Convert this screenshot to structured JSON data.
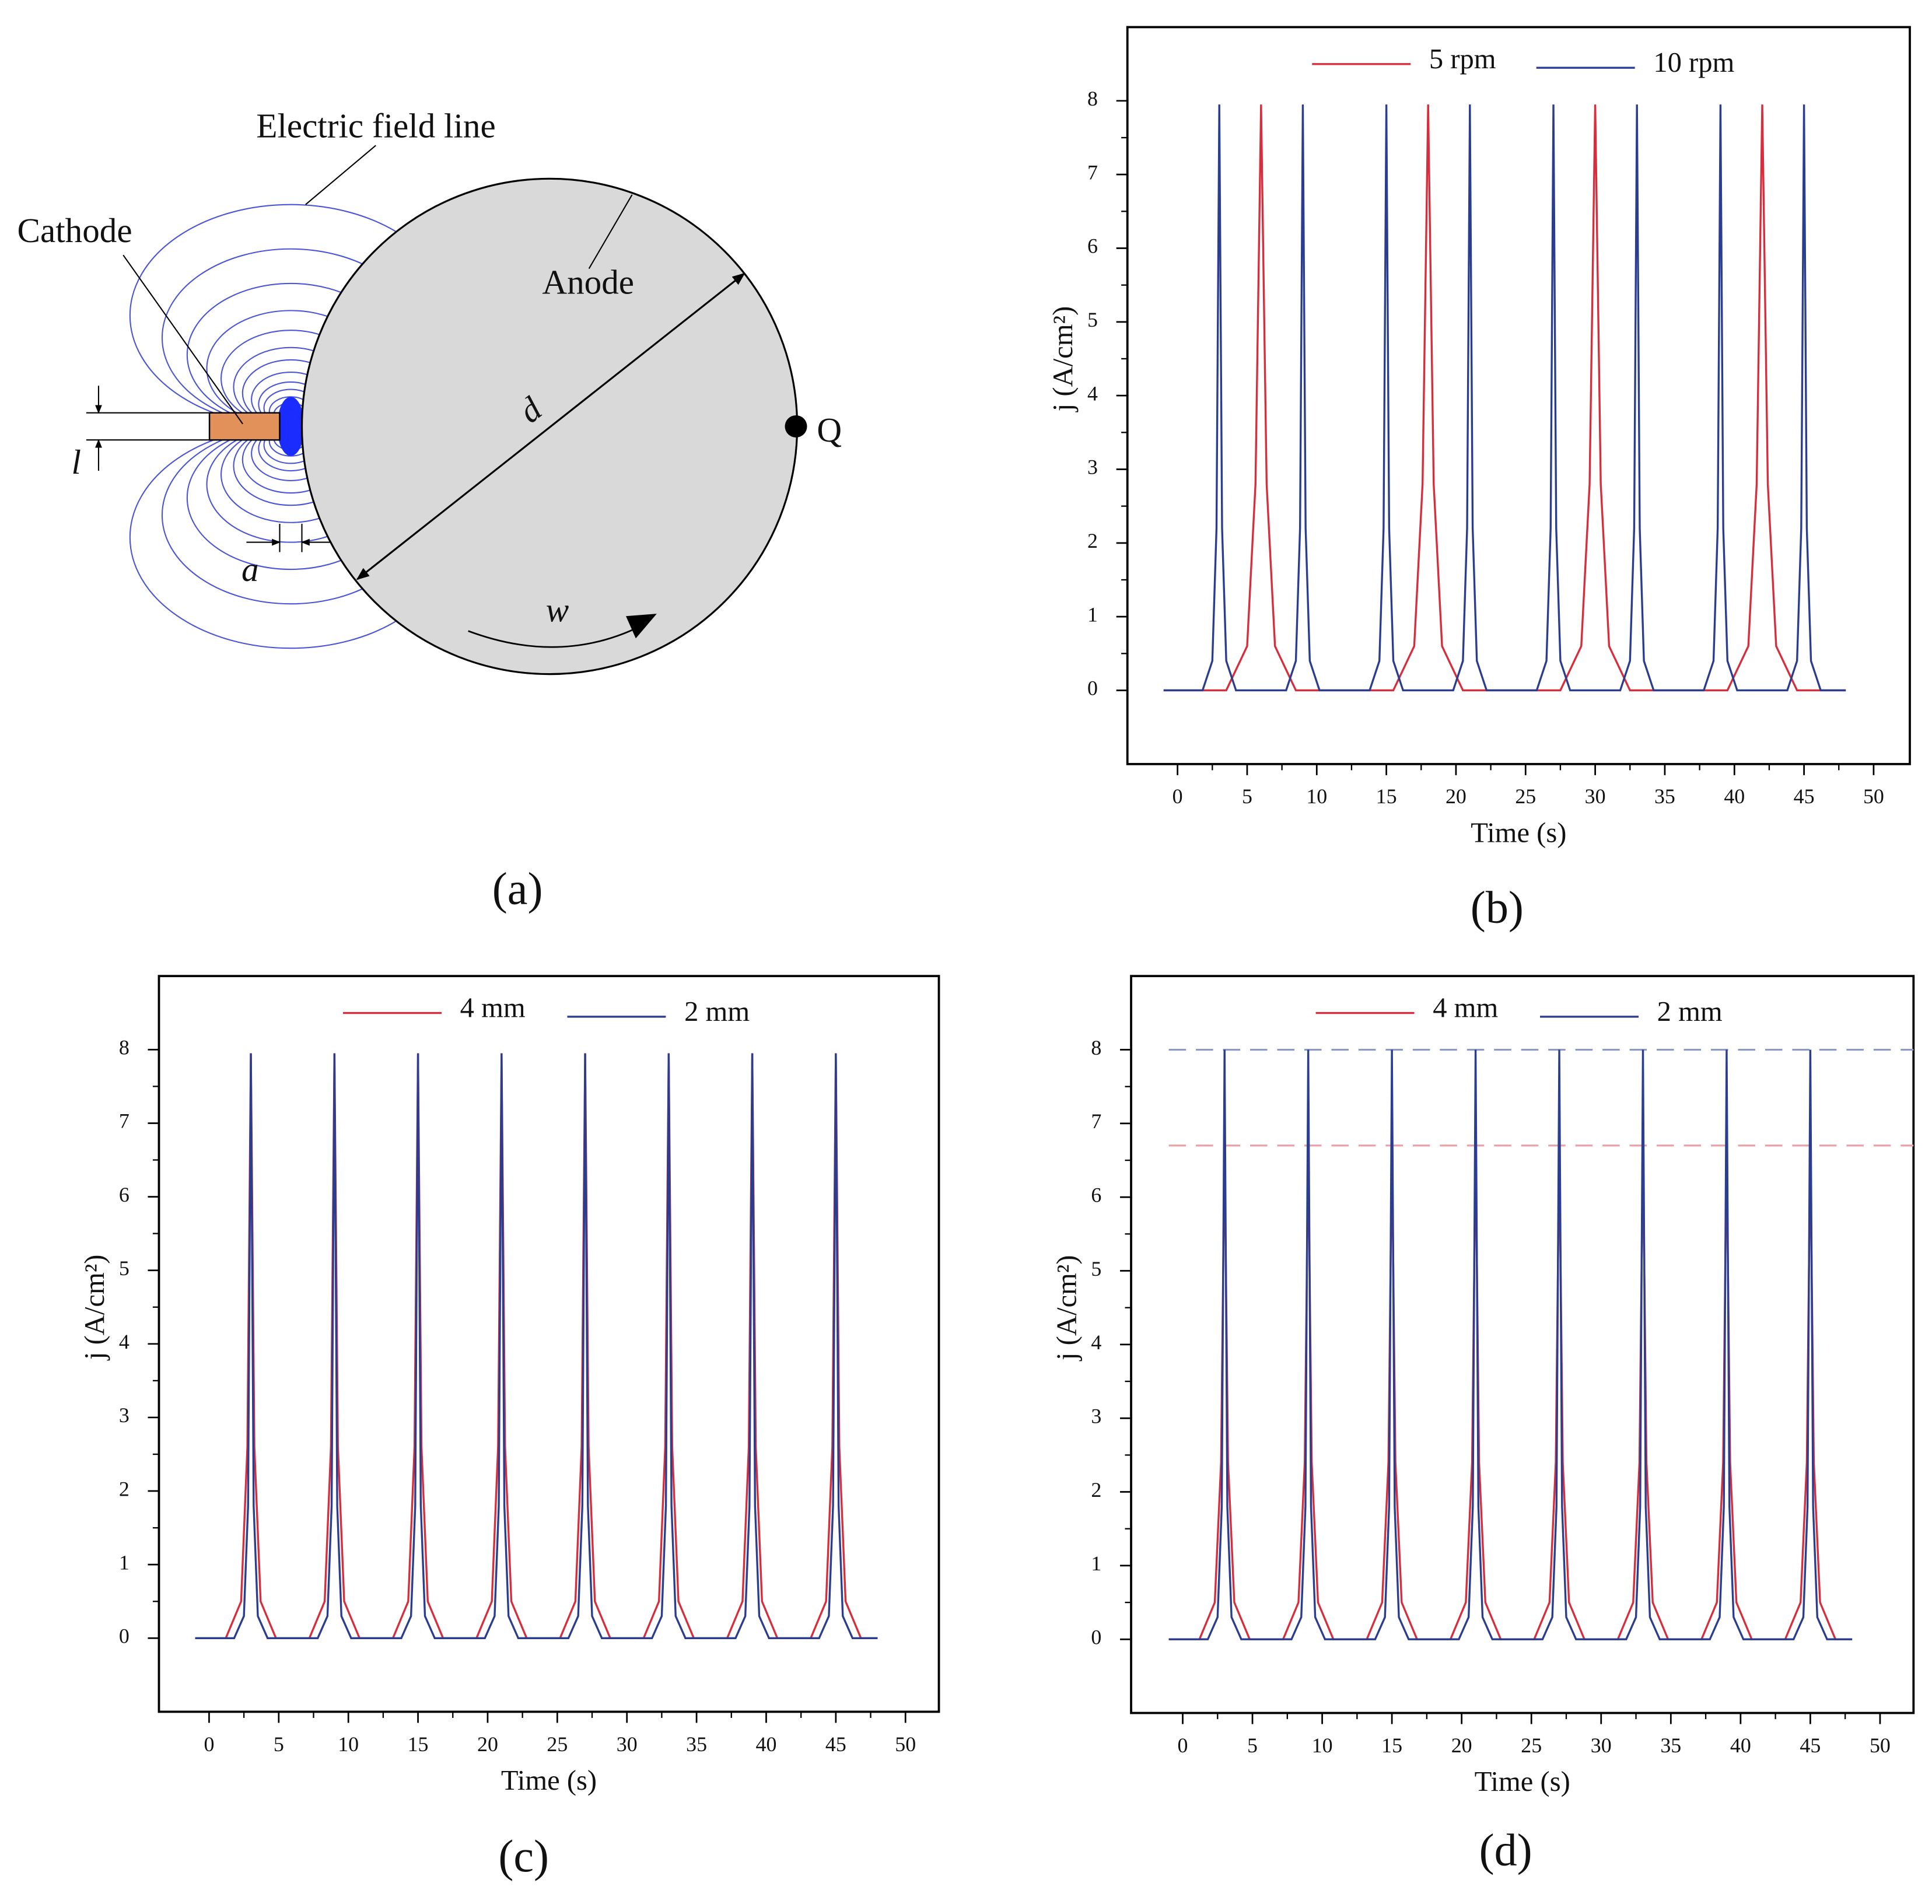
{
  "diagram": {
    "field_line_label": "Electric field line",
    "cathode": "Cathode",
    "anode": "Anode",
    "diameter": "d",
    "point": "Q",
    "thickness": "l",
    "gap": "a",
    "speed": "w",
    "caption": "(a)"
  },
  "chart_data": [
    {
      "type": "line",
      "caption": "(b)",
      "xlabel": "Time (s)",
      "ylabel": "j (A/cm²)",
      "legend": "top",
      "xlim": [
        -3.6,
        52.6
      ],
      "ylim": [
        -1,
        9
      ],
      "xticks": [
        0,
        5,
        10,
        15,
        20,
        25,
        30,
        35,
        40,
        45,
        50
      ],
      "xticks_minor": [
        2.5,
        7.5,
        12.5,
        17.5,
        22.5,
        27.5,
        32.5,
        37.5,
        42.5,
        47.5
      ],
      "yticks": [
        0,
        1,
        2,
        3,
        4,
        5,
        6,
        7,
        8
      ],
      "yticks_minor": [
        0.5,
        1.5,
        2.5,
        3.5,
        4.5,
        5.5,
        6.5,
        7.5
      ],
      "series": [
        {
          "name": "5 rpm",
          "color": "#d62e3c",
          "x": [
            -1,
            3.5,
            5,
            5.6,
            6,
            6.4,
            7,
            8.5,
            15.5,
            17,
            17.6,
            18,
            18.4,
            19,
            20.5,
            27.5,
            29,
            29.6,
            30,
            30.4,
            31,
            32.5,
            39.5,
            41,
            41.6,
            42,
            42.4,
            43,
            44.5,
            48
          ],
          "values": [
            0,
            0,
            0.6,
            2.8,
            7.95,
            2.8,
            0.6,
            0,
            0,
            0.6,
            2.8,
            7.95,
            2.8,
            0.6,
            0,
            0,
            0.6,
            2.8,
            7.95,
            2.8,
            0.6,
            0,
            0,
            0.6,
            2.8,
            7.95,
            2.8,
            0.6,
            0,
            0
          ]
        },
        {
          "name": "10 rpm",
          "color": "#2b3d8f",
          "x": [
            -1,
            1.8,
            2.5,
            2.8,
            3,
            3.2,
            3.5,
            4.2,
            7.8,
            8.5,
            8.8,
            9,
            9.2,
            9.5,
            10.2,
            13.8,
            14.5,
            14.8,
            15,
            15.2,
            15.5,
            16.2,
            19.8,
            20.5,
            20.8,
            21,
            21.2,
            21.5,
            22.2,
            25.8,
            26.5,
            26.8,
            27,
            27.2,
            27.5,
            28.2,
            31.8,
            32.5,
            32.8,
            33,
            33.2,
            33.5,
            34.2,
            37.8,
            38.5,
            38.8,
            39,
            39.2,
            39.5,
            40.2,
            43.8,
            44.5,
            44.8,
            45,
            45.2,
            45.5,
            46.2,
            48
          ],
          "values": [
            0,
            0,
            0.4,
            2.2,
            7.95,
            2.2,
            0.4,
            0,
            0,
            0.4,
            2.2,
            7.95,
            2.2,
            0.4,
            0,
            0,
            0.4,
            2.2,
            7.95,
            2.2,
            0.4,
            0,
            0,
            0.4,
            2.2,
            7.95,
            2.2,
            0.4,
            0,
            0,
            0.4,
            2.2,
            7.95,
            2.2,
            0.4,
            0,
            0,
            0.4,
            2.2,
            7.95,
            2.2,
            0.4,
            0,
            0,
            0.4,
            2.2,
            7.95,
            2.2,
            0.4,
            0,
            0,
            0.4,
            2.2,
            7.95,
            2.2,
            0.4,
            0,
            0
          ]
        }
      ]
    },
    {
      "type": "line",
      "caption": "(c)",
      "xlabel": "Time (s)",
      "ylabel": "j (A/cm²)",
      "legend": "top",
      "xlim": [
        -3.6,
        52.4
      ],
      "ylim": [
        -1,
        9
      ],
      "xticks": [
        0,
        5,
        10,
        15,
        20,
        25,
        30,
        35,
        40,
        45,
        50
      ],
      "xticks_minor": [
        2.5,
        7.5,
        12.5,
        17.5,
        22.5,
        27.5,
        32.5,
        37.5,
        42.5,
        47.5
      ],
      "yticks": [
        0,
        1,
        2,
        3,
        4,
        5,
        6,
        7,
        8
      ],
      "yticks_minor": [
        0.5,
        1.5,
        2.5,
        3.5,
        4.5,
        5.5,
        6.5,
        7.5
      ],
      "series": [
        {
          "name": "4 mm",
          "color": "#d62e3c",
          "x": [
            -1,
            1.2,
            2.3,
            2.75,
            3,
            3.25,
            3.7,
            4.8,
            7.2,
            8.3,
            8.75,
            9,
            9.25,
            9.7,
            10.8,
            13.2,
            14.3,
            14.75,
            15,
            15.25,
            15.7,
            16.8,
            19.2,
            20.3,
            20.75,
            21,
            21.25,
            21.7,
            22.8,
            25.2,
            26.3,
            26.75,
            27,
            27.25,
            27.7,
            28.8,
            31.2,
            32.3,
            32.75,
            33,
            33.25,
            33.7,
            34.8,
            37.2,
            38.3,
            38.75,
            39,
            39.25,
            39.7,
            40.8,
            43.2,
            44.3,
            44.75,
            45,
            45.25,
            45.7,
            46.8,
            48
          ],
          "values": [
            0,
            0,
            0.5,
            2.6,
            7.95,
            2.6,
            0.5,
            0,
            0,
            0.5,
            2.6,
            7.95,
            2.6,
            0.5,
            0,
            0,
            0.5,
            2.6,
            7.95,
            2.6,
            0.5,
            0,
            0,
            0.5,
            2.6,
            7.95,
            2.6,
            0.5,
            0,
            0,
            0.5,
            2.6,
            7.95,
            2.6,
            0.5,
            0,
            0,
            0.5,
            2.6,
            7.95,
            2.6,
            0.5,
            0,
            0,
            0.5,
            2.6,
            7.95,
            2.6,
            0.5,
            0,
            0,
            0.5,
            2.6,
            7.95,
            2.6,
            0.5,
            0,
            0
          ]
        },
        {
          "name": "2 mm",
          "color": "#2b3d8f",
          "x": [
            -1,
            1.8,
            2.5,
            2.8,
            3,
            3.2,
            3.5,
            4.2,
            7.8,
            8.5,
            8.8,
            9,
            9.2,
            9.5,
            10.2,
            13.8,
            14.5,
            14.8,
            15,
            15.2,
            15.5,
            16.2,
            19.8,
            20.5,
            20.8,
            21,
            21.2,
            21.5,
            22.2,
            25.8,
            26.5,
            26.8,
            27,
            27.2,
            27.5,
            28.2,
            31.8,
            32.5,
            32.8,
            33,
            33.2,
            33.5,
            34.2,
            37.8,
            38.5,
            38.8,
            39,
            39.2,
            39.5,
            40.2,
            43.8,
            44.5,
            44.8,
            45,
            45.2,
            45.5,
            46.2,
            48
          ],
          "values": [
            0,
            0,
            0.3,
            1.8,
            7.95,
            1.8,
            0.3,
            0,
            0,
            0.3,
            1.8,
            7.95,
            1.8,
            0.3,
            0,
            0,
            0.3,
            1.8,
            7.95,
            1.8,
            0.3,
            0,
            0,
            0.3,
            1.8,
            7.95,
            1.8,
            0.3,
            0,
            0,
            0.3,
            1.8,
            7.95,
            1.8,
            0.3,
            0,
            0,
            0.3,
            1.8,
            7.95,
            1.8,
            0.3,
            0,
            0,
            0.3,
            1.8,
            7.95,
            1.8,
            0.3,
            0,
            0,
            0.3,
            1.8,
            7.95,
            1.8,
            0.3,
            0,
            0
          ]
        }
      ]
    },
    {
      "type": "line",
      "caption": "(d)",
      "xlabel": "Time (s)",
      "ylabel": "j (A/cm²)",
      "legend": "top",
      "xlim": [
        -3.7,
        52.4
      ],
      "ylim": [
        -1,
        9
      ],
      "xticks": [
        0,
        5,
        10,
        15,
        20,
        25,
        30,
        35,
        40,
        45,
        50
      ],
      "xticks_minor": [
        2.5,
        7.5,
        12.5,
        17.5,
        22.5,
        27.5,
        32.5,
        37.5,
        42.5,
        47.5
      ],
      "yticks": [
        0,
        1,
        2,
        3,
        4,
        5,
        6,
        7,
        8
      ],
      "yticks_minor": [
        0.5,
        1.5,
        2.5,
        3.5,
        4.5,
        5.5,
        6.5,
        7.5
      ],
      "hlines": [
        {
          "value": 8,
          "color": "#8c9ac8"
        },
        {
          "value": 6.7,
          "color": "#eaa3a8"
        }
      ],
      "series": [
        {
          "name": "4 mm",
          "color": "#d62e3c",
          "x": [
            -1,
            1.2,
            2.3,
            2.75,
            3,
            3.25,
            3.7,
            4.8,
            7.2,
            8.3,
            8.75,
            9,
            9.25,
            9.7,
            10.8,
            13.2,
            14.3,
            14.75,
            15,
            15.25,
            15.7,
            16.8,
            19.2,
            20.3,
            20.75,
            21,
            21.25,
            21.7,
            22.8,
            25.2,
            26.3,
            26.75,
            27,
            27.25,
            27.7,
            28.8,
            31.2,
            32.3,
            32.75,
            33,
            33.25,
            33.7,
            34.8,
            37.2,
            38.3,
            38.75,
            39,
            39.25,
            39.7,
            40.8,
            43.2,
            44.3,
            44.75,
            45,
            45.25,
            45.7,
            46.8,
            48
          ],
          "values": [
            0,
            0,
            0.5,
            2.4,
            6.7,
            2.4,
            0.5,
            0,
            0,
            0.5,
            2.4,
            6.7,
            2.4,
            0.5,
            0,
            0,
            0.5,
            2.4,
            6.7,
            2.4,
            0.5,
            0,
            0,
            0.5,
            2.4,
            6.7,
            2.4,
            0.5,
            0,
            0,
            0.5,
            2.4,
            6.7,
            2.4,
            0.5,
            0,
            0,
            0.5,
            2.4,
            6.7,
            2.4,
            0.5,
            0,
            0,
            0.5,
            2.4,
            6.7,
            2.4,
            0.5,
            0,
            0,
            0.5,
            2.4,
            6.7,
            2.4,
            0.5,
            0,
            0
          ]
        },
        {
          "name": "2 mm",
          "color": "#2b3d8f",
          "x": [
            -1,
            1.8,
            2.5,
            2.8,
            3,
            3.2,
            3.5,
            4.2,
            7.8,
            8.5,
            8.8,
            9,
            9.2,
            9.5,
            10.2,
            13.8,
            14.5,
            14.8,
            15,
            15.2,
            15.5,
            16.2,
            19.8,
            20.5,
            20.8,
            21,
            21.2,
            21.5,
            22.2,
            25.8,
            26.5,
            26.8,
            27,
            27.2,
            27.5,
            28.2,
            31.8,
            32.5,
            32.8,
            33,
            33.2,
            33.5,
            34.2,
            37.8,
            38.5,
            38.8,
            39,
            39.2,
            39.5,
            40.2,
            43.8,
            44.5,
            44.8,
            45,
            45.2,
            45.5,
            46.2,
            48
          ],
          "values": [
            0,
            0,
            0.3,
            1.8,
            8,
            1.8,
            0.3,
            0,
            0,
            0.3,
            1.8,
            8,
            1.8,
            0.3,
            0,
            0,
            0.3,
            1.8,
            8,
            1.8,
            0.3,
            0,
            0,
            0.3,
            1.8,
            8,
            1.8,
            0.3,
            0,
            0,
            0.3,
            1.8,
            8,
            1.8,
            0.3,
            0,
            0,
            0.3,
            1.8,
            8,
            1.8,
            0.3,
            0,
            0,
            0.3,
            1.8,
            8,
            1.8,
            0.3,
            0,
            0,
            0.3,
            1.8,
            8,
            1.8,
            0.3,
            0,
            0
          ]
        }
      ]
    }
  ]
}
